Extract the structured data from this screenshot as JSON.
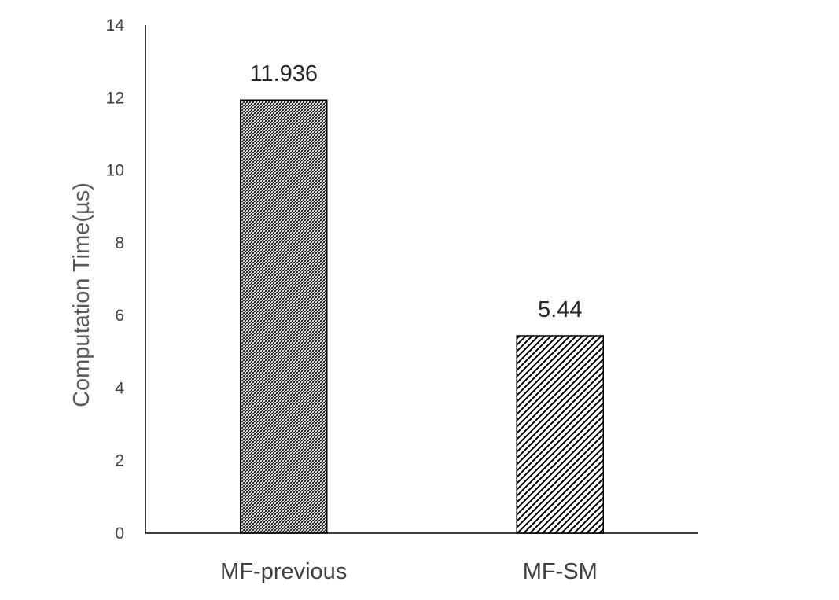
{
  "chart_data": {
    "type": "bar",
    "categories": [
      "MF-previous",
      "MF-SM"
    ],
    "values": [
      11.936,
      5.44
    ],
    "data_labels": [
      "11.936",
      "5.44"
    ],
    "xlabel": "",
    "ylabel": "Computation Time(µs)",
    "ylim": [
      0,
      14
    ],
    "yticks": [
      0,
      2,
      4,
      6,
      8,
      10,
      12,
      14
    ],
    "grid": false,
    "legend": "none",
    "bar_patterns": [
      "dense-hatch",
      "wide-diagonal-hatch"
    ],
    "colors": {
      "bar_stroke": "#000000",
      "axis": "#000000",
      "text": "#404040"
    }
  }
}
